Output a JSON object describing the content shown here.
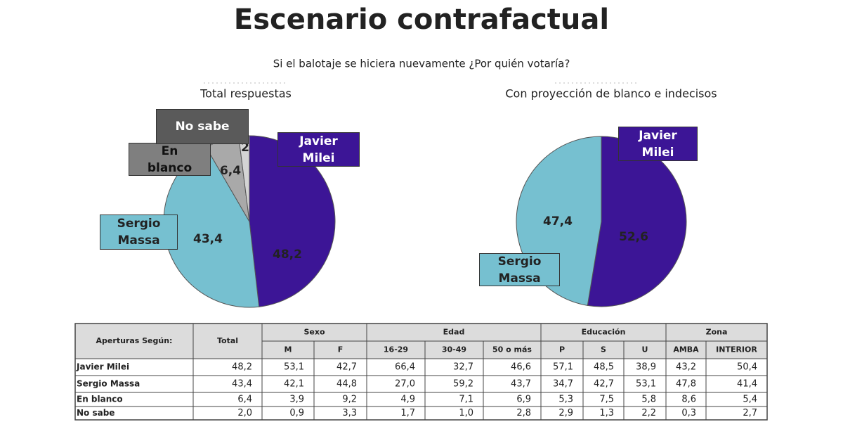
{
  "title": "Escenario contrafactual",
  "subtitle": "Si el balotaje se hiciera nuevamente ¿Por quién votaría?",
  "chart_data": [
    {
      "type": "pie",
      "title": "Total respuestas",
      "categories": [
        "Javier Milei",
        "Sergio Massa",
        "En blanco",
        "No sabe"
      ],
      "values": [
        48.2,
        43.4,
        6.4,
        2
      ],
      "value_labels": [
        "48,2",
        "43,4",
        "6,4",
        "2"
      ],
      "colors": [
        "#3c1596",
        "#76c0d0",
        "#a9a9a9",
        "#d4d4d4"
      ]
    },
    {
      "type": "pie",
      "title": "Con proyección de blanco e indecisos",
      "categories": [
        "Javier Milei",
        "Sergio Massa"
      ],
      "values": [
        52.6,
        47.4
      ],
      "value_labels": [
        "52,6",
        "47,4"
      ],
      "colors": [
        "#3c1596",
        "#76c0d0"
      ]
    }
  ],
  "table": {
    "corner": "Aperturas Según:",
    "total": "Total",
    "groups": [
      {
        "name": "Sexo",
        "columns": [
          "M",
          "F"
        ]
      },
      {
        "name": "Edad",
        "columns": [
          "16-29",
          "30-49",
          "50 o más"
        ]
      },
      {
        "name": "Educación",
        "columns": [
          "P",
          "S",
          "U"
        ]
      },
      {
        "name": "Zona",
        "columns": [
          "AMBA",
          "INTERIOR"
        ]
      }
    ],
    "rows": [
      {
        "label": "Javier Milei",
        "cells": [
          "48,2",
          "53,1",
          "42,7",
          "66,4",
          "32,7",
          "46,6",
          "57,1",
          "48,5",
          "38,9",
          "43,2",
          "50,4"
        ]
      },
      {
        "label": "Sergio Massa",
        "cells": [
          "43,4",
          "42,1",
          "44,8",
          "27,0",
          "59,2",
          "43,7",
          "34,7",
          "42,7",
          "53,1",
          "47,8",
          "41,4"
        ]
      },
      {
        "label": "En blanco",
        "cells": [
          "6,4",
          "3,9",
          "9,2",
          "4,9",
          "7,1",
          "6,9",
          "5,3",
          "7,5",
          "5,8",
          "8,6",
          "5,4"
        ]
      },
      {
        "label": "No sabe",
        "cells": [
          "2,0",
          "0,9",
          "3,3",
          "1,7",
          "1,0",
          "2,8",
          "2,9",
          "1,3",
          "2,2",
          "0,3",
          "2,7"
        ]
      }
    ]
  }
}
